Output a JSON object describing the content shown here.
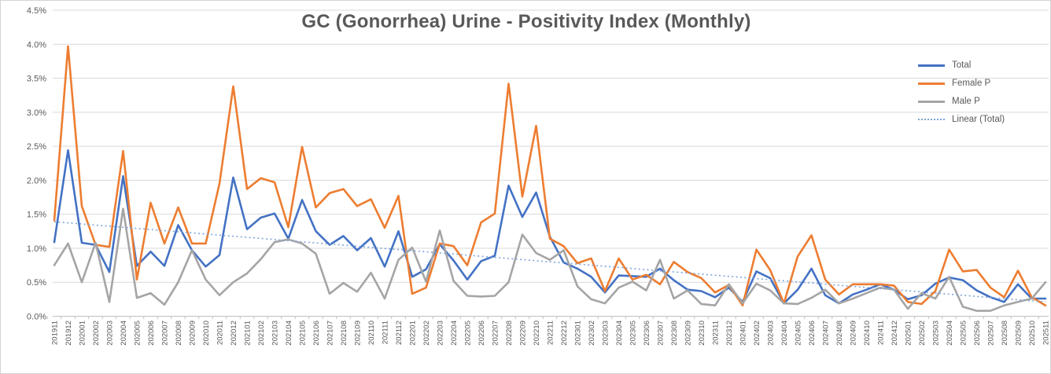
{
  "title": "GC (Gonorrhea) Urine - Positivity Index (Monthly)",
  "colors": {
    "total": "#4472C4",
    "female": "#ED7D31",
    "male": "#A5A5A5",
    "trend": "#7EA6D9",
    "gridline": "#D9D9D9",
    "axis_line": "#BFBFBF",
    "axis_text": "#595959",
    "title_text": "#595959",
    "background": "#FFFFFF"
  },
  "chart_data": {
    "type": "line",
    "title": "GC (Gonorrhea) Urine - Positivity Index (Monthly)",
    "xlabel": "",
    "ylabel": "",
    "ylim": [
      0,
      4.5
    ],
    "ytick_step": 0.5,
    "grid": true,
    "legend_position": "right",
    "value_unit": "percent",
    "y_tick_labels": [
      "0.0%",
      "0.5%",
      "1.0%",
      "1.5%",
      "2.0%",
      "2.5%",
      "3.0%",
      "3.5%",
      "4.0%",
      "4.5%"
    ],
    "categories": [
      "201911",
      "201912",
      "202001",
      "202002",
      "202003",
      "202004",
      "202005",
      "202006",
      "202007",
      "202008",
      "202009",
      "202010",
      "202011",
      "202012",
      "202101",
      "202102",
      "202103",
      "202104",
      "202105",
      "202106",
      "202107",
      "202108",
      "202109",
      "202110",
      "202111",
      "202112",
      "202201",
      "202202",
      "202203",
      "202204",
      "202205",
      "202206",
      "202207",
      "202208",
      "202209",
      "202210",
      "202211",
      "202212",
      "202301",
      "202302",
      "202303",
      "202304",
      "202305",
      "202306",
      "202307",
      "202308",
      "202309",
      "202310",
      "202311",
      "202312",
      "202401",
      "202402",
      "202403",
      "202404",
      "202405",
      "202406",
      "202407",
      "202408",
      "202409",
      "202410",
      "202411",
      "202412",
      "202501",
      "202502",
      "202503",
      "202504",
      "202505",
      "202506",
      "202507",
      "202508",
      "202509",
      "202510",
      "202511"
    ],
    "series": [
      {
        "name": "Total",
        "color": "#4472C4",
        "values": [
          1.09,
          2.44,
          1.08,
          1.05,
          0.65,
          2.06,
          0.74,
          0.95,
          0.74,
          1.34,
          0.97,
          0.73,
          0.9,
          2.04,
          1.28,
          1.45,
          1.51,
          1.14,
          1.71,
          1.25,
          1.05,
          1.18,
          0.97,
          1.15,
          0.73,
          1.25,
          0.58,
          0.69,
          1.06,
          0.82,
          0.54,
          0.81,
          0.89,
          1.92,
          1.46,
          1.82,
          1.17,
          0.79,
          0.7,
          0.58,
          0.35,
          0.6,
          0.59,
          0.58,
          0.7,
          0.53,
          0.39,
          0.37,
          0.28,
          0.42,
          0.21,
          0.66,
          0.56,
          0.19,
          0.39,
          0.7,
          0.31,
          0.19,
          0.32,
          0.39,
          0.47,
          0.39,
          0.25,
          0.31,
          0.48,
          0.57,
          0.53,
          0.38,
          0.28,
          0.21,
          0.47,
          0.26,
          0.26
        ]
      },
      {
        "name": "Female P",
        "color": "#ED7D31",
        "values": [
          1.41,
          3.97,
          1.62,
          1.05,
          1.02,
          2.43,
          0.54,
          1.67,
          1.07,
          1.6,
          1.07,
          1.07,
          1.95,
          3.38,
          1.87,
          2.03,
          1.97,
          1.31,
          2.49,
          1.6,
          1.81,
          1.87,
          1.62,
          1.72,
          1.3,
          1.77,
          0.33,
          0.42,
          1.07,
          1.03,
          0.75,
          1.38,
          1.51,
          3.42,
          1.76,
          2.8,
          1.14,
          1.03,
          0.78,
          0.85,
          0.37,
          0.85,
          0.54,
          0.61,
          0.47,
          0.8,
          0.65,
          0.56,
          0.35,
          0.46,
          0.16,
          0.98,
          0.68,
          0.19,
          0.88,
          1.19,
          0.54,
          0.32,
          0.47,
          0.47,
          0.47,
          0.45,
          0.21,
          0.18,
          0.37,
          0.98,
          0.66,
          0.68,
          0.42,
          0.28,
          0.67,
          0.28,
          0.16
        ]
      },
      {
        "name": "Male P",
        "color": "#A5A5A5",
        "values": [
          0.75,
          1.07,
          0.5,
          1.08,
          0.21,
          1.58,
          0.27,
          0.34,
          0.17,
          0.5,
          0.97,
          0.54,
          0.31,
          0.5,
          0.63,
          0.84,
          1.09,
          1.13,
          1.07,
          0.92,
          0.33,
          0.49,
          0.36,
          0.64,
          0.26,
          0.83,
          1.01,
          0.51,
          1.26,
          0.52,
          0.3,
          0.29,
          0.3,
          0.5,
          1.2,
          0.93,
          0.83,
          0.97,
          0.44,
          0.25,
          0.19,
          0.42,
          0.51,
          0.38,
          0.83,
          0.26,
          0.38,
          0.18,
          0.16,
          0.47,
          0.19,
          0.48,
          0.38,
          0.19,
          0.18,
          0.27,
          0.39,
          0.19,
          0.26,
          0.34,
          0.42,
          0.39,
          0.11,
          0.34,
          0.26,
          0.58,
          0.14,
          0.08,
          0.08,
          0.16,
          0.21,
          0.26,
          0.5
        ]
      }
    ],
    "trendline": {
      "name": "Linear (Total)",
      "of_series": "Total",
      "color": "#7EA6D9",
      "style": "dotted",
      "start_value": 1.39,
      "end_value": 0.21
    }
  }
}
